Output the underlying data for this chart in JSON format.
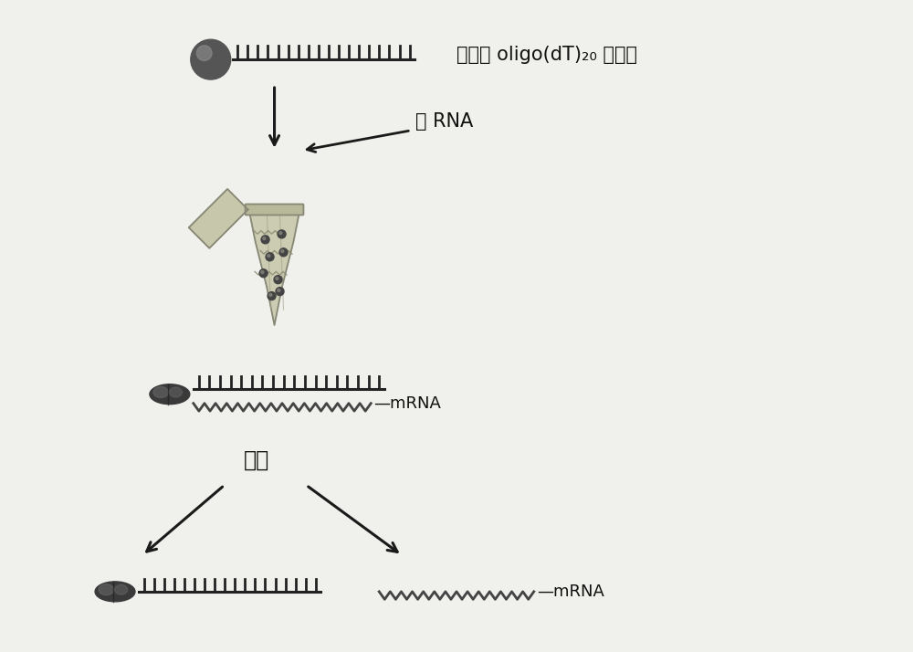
{
  "bg_color": "#f0f0ec",
  "label_top_right": "偶联有 oligo(dT)₂₀ 的磁粒",
  "label_total_rna": "总 RNA",
  "label_wash": "洗脱",
  "text_fontsize": 15,
  "small_fontsize": 13,
  "arrow_color": "#1a1a1a",
  "dark_color": "#333333",
  "bead_color": "#555555",
  "bead_highlight": "#888888",
  "tube_body": "#c8c8aa",
  "tube_edge": "#888877",
  "particle_color": "#444444",
  "comb_color": "#222222",
  "zigzag_color": "#444444"
}
